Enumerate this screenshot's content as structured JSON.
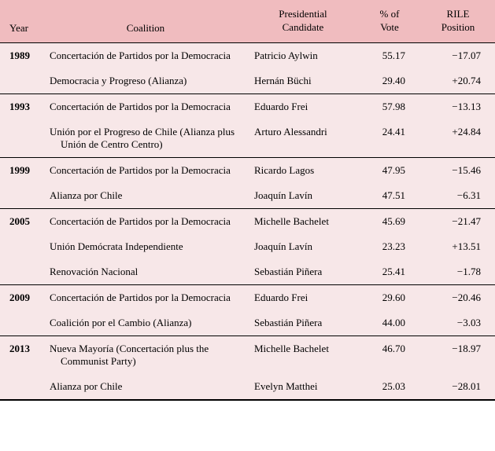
{
  "columns": {
    "year": "Year",
    "coalition": "Coalition",
    "candidate": "Presidential\nCandidate",
    "vote": "% of\nVote",
    "rile": "RILE\nPosition"
  },
  "years": [
    {
      "year": "1989",
      "rows": [
        {
          "coalition": "Concertación de Partidos por la Democracia",
          "candidate": "Patricio Aylwin",
          "vote": "55.17",
          "rile": "−17.07"
        },
        {
          "coalition": "Democracia y Progreso (Alianza)",
          "candidate": "Hernán Büchi",
          "vote": "29.40",
          "rile": "+20.74"
        }
      ]
    },
    {
      "year": "1993",
      "rows": [
        {
          "coalition": "Concertación de Partidos por la Democracia",
          "candidate": "Eduardo Frei",
          "vote": "57.98",
          "rile": "−13.13"
        },
        {
          "coalition": "Unión por el Progreso de Chile (Alianza plus Unión de Centro Centro)",
          "candidate": "Arturo Alessandri",
          "vote": "24.41",
          "rile": "+24.84"
        }
      ]
    },
    {
      "year": "1999",
      "rows": [
        {
          "coalition": "Concertación de Partidos por la Democracia",
          "candidate": "Ricardo Lagos",
          "vote": "47.95",
          "rile": "−15.46"
        },
        {
          "coalition": "Alianza por Chile",
          "candidate": "Joaquín Lavín",
          "vote": "47.51",
          "rile": "−6.31"
        }
      ]
    },
    {
      "year": "2005",
      "rows": [
        {
          "coalition": "Concertación de Partidos por la Democracia",
          "candidate": "Michelle Bachelet",
          "vote": "45.69",
          "rile": "−21.47"
        },
        {
          "coalition": "Unión Demócrata Independiente",
          "candidate": "Joaquín Lavín",
          "vote": "23.23",
          "rile": "+13.51"
        },
        {
          "coalition": "Renovación Nacional",
          "candidate": "Sebastián Piñera",
          "vote": "25.41",
          "rile": "−1.78"
        }
      ]
    },
    {
      "year": "2009",
      "rows": [
        {
          "coalition": "Concertación de Partidos por la Democracia",
          "candidate": "Eduardo Frei",
          "vote": "29.60",
          "rile": "−20.46"
        },
        {
          "coalition": "Coalición por el Cambio (Alianza)",
          "candidate": "Sebastián Piñera",
          "vote": "44.00",
          "rile": "−3.03"
        }
      ]
    },
    {
      "year": "2013",
      "rows": [
        {
          "coalition": "Nueva Mayoría (Concertación plus the Communist Party)",
          "candidate": "Michelle Bachelet",
          "vote": "46.70",
          "rile": "−18.97"
        },
        {
          "coalition": "Alianza por Chile",
          "candidate": "Evelyn Matthei",
          "vote": "25.03",
          "rile": "−28.01"
        }
      ]
    }
  ]
}
